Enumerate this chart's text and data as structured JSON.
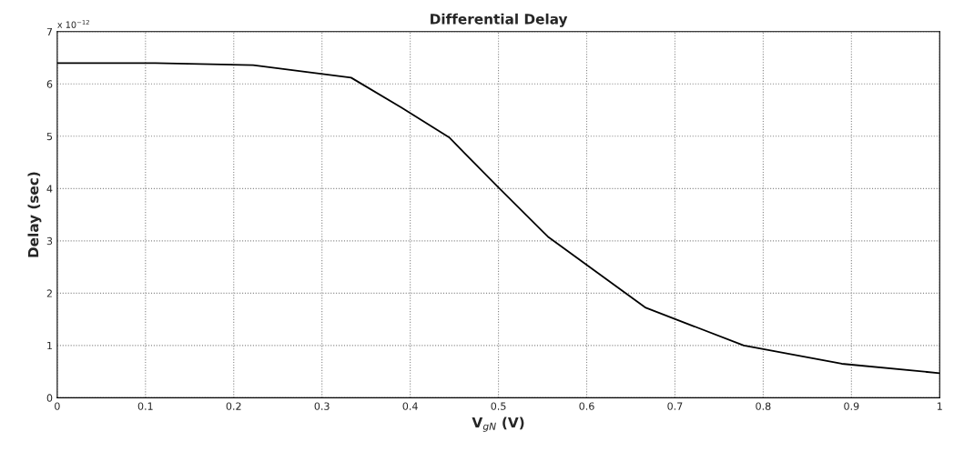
{
  "chart_data": {
    "type": "line",
    "title": "Differential Delay",
    "xlabel": "V$_{gN}$ (V)",
    "ylabel": "Delay (sec)",
    "x": [
      0,
      0.111,
      0.222,
      0.333,
      0.39,
      0.444,
      0.5,
      0.556,
      0.667,
      0.778,
      0.889,
      1.0
    ],
    "series": [
      {
        "color": "#000000",
        "values": [
          6.4,
          6.4,
          6.36,
          6.12,
          5.55,
          4.98,
          4.02,
          3.08,
          1.72,
          1.0,
          0.65,
          0.47
        ]
      }
    ],
    "xlim": [
      0,
      1
    ],
    "ylim": [
      0,
      7
    ],
    "xticks": [
      0,
      0.1,
      0.2,
      0.3,
      0.4,
      0.5,
      0.6,
      0.7,
      0.8,
      0.9,
      1
    ],
    "yticks": [
      0,
      1,
      2,
      3,
      4,
      5,
      6,
      7
    ],
    "annotations": [
      "x 10$^{−12}$"
    ],
    "grid": true,
    "line_style": "solid",
    "marker": "none"
  }
}
